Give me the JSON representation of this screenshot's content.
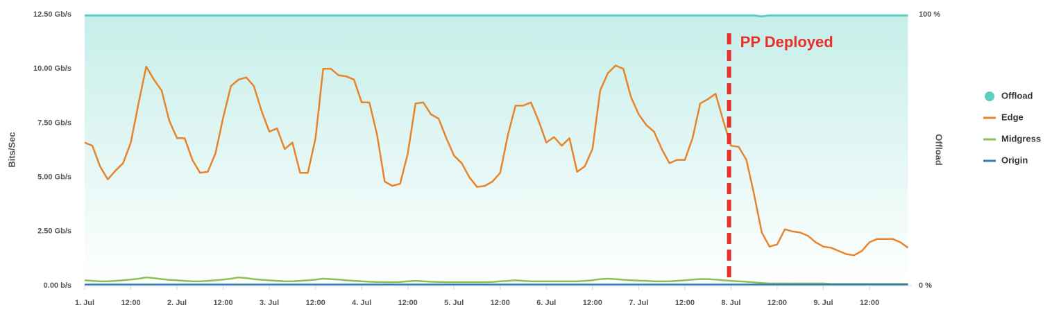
{
  "chart_data": {
    "type": "line",
    "y_label": "Bits/Sec",
    "y2_label": "Offload",
    "x": [
      0,
      2,
      4,
      6,
      8,
      10,
      12,
      14,
      16,
      18,
      20,
      22,
      24,
      26,
      28,
      30,
      32,
      34,
      36,
      38,
      40,
      42,
      44,
      46,
      48,
      50,
      52,
      54,
      56,
      58,
      60,
      62,
      64,
      66,
      68,
      70,
      72,
      74,
      76,
      78,
      80,
      82,
      84,
      86,
      88,
      90,
      92,
      94,
      96,
      98,
      100,
      102,
      104,
      106,
      108,
      110,
      112,
      114,
      116,
      118,
      120,
      122,
      124,
      126,
      128,
      130,
      132,
      134,
      136,
      138,
      140,
      142,
      144,
      146,
      148,
      150,
      152,
      154,
      156,
      158,
      160,
      162,
      164,
      166,
      168,
      170,
      172,
      174,
      176,
      178,
      180,
      182,
      184,
      186,
      188,
      190,
      192,
      194,
      196,
      198,
      200,
      202,
      204,
      206,
      208,
      210,
      212,
      214
    ],
    "series": [
      {
        "name": "Offload",
        "color": "#5ccfc0",
        "axis": "y2",
        "values": [
          99.7,
          99.7,
          99.7,
          99.7,
          99.7,
          99.7,
          99.7,
          99.7,
          99.7,
          99.7,
          99.7,
          99.7,
          99.7,
          99.7,
          99.7,
          99.7,
          99.7,
          99.7,
          99.7,
          99.7,
          99.7,
          99.7,
          99.7,
          99.7,
          99.7,
          99.7,
          99.7,
          99.7,
          99.7,
          99.7,
          99.7,
          99.7,
          99.7,
          99.7,
          99.7,
          99.7,
          99.7,
          99.7,
          99.7,
          99.7,
          99.7,
          99.7,
          99.7,
          99.7,
          99.7,
          99.7,
          99.7,
          99.7,
          99.7,
          99.7,
          99.7,
          99.7,
          99.7,
          99.7,
          99.7,
          99.7,
          99.7,
          99.7,
          99.7,
          99.7,
          99.7,
          99.7,
          99.7,
          99.7,
          99.7,
          99.7,
          99.7,
          99.7,
          99.7,
          99.7,
          99.7,
          99.7,
          99.7,
          99.7,
          99.7,
          99.7,
          99.7,
          99.7,
          99.7,
          99.7,
          99.7,
          99.7,
          99.7,
          99.7,
          99.7,
          99.7,
          99.7,
          99.7,
          99.3,
          99.7,
          99.7,
          99.7,
          99.7,
          99.7,
          99.7,
          99.7,
          99.7,
          99.7,
          99.7,
          99.7,
          99.7,
          99.7,
          99.7,
          99.7,
          99.7,
          99.7,
          99.7,
          99.7
        ]
      },
      {
        "name": "Edge",
        "color": "#e8832a",
        "values": [
          6.6,
          6.45,
          5.5,
          4.9,
          5.3,
          5.65,
          6.6,
          8.4,
          10.1,
          9.5,
          9.0,
          7.6,
          6.8,
          6.8,
          5.8,
          5.2,
          5.25,
          6.1,
          7.75,
          9.2,
          9.5,
          9.6,
          9.2,
          8.05,
          7.1,
          7.25,
          6.3,
          6.6,
          5.2,
          5.2,
          6.8,
          10.0,
          10.0,
          9.7,
          9.65,
          9.5,
          8.45,
          8.45,
          6.95,
          4.8,
          4.6,
          4.7,
          6.1,
          8.4,
          8.45,
          7.9,
          7.7,
          6.8,
          6.0,
          5.65,
          5.0,
          4.55,
          4.6,
          4.8,
          5.2,
          6.95,
          8.3,
          8.3,
          8.45,
          7.6,
          6.6,
          6.85,
          6.45,
          6.8,
          5.25,
          5.5,
          6.3,
          9.0,
          9.8,
          10.15,
          10.0,
          8.7,
          7.9,
          7.4,
          7.1,
          6.3,
          5.65,
          5.8,
          5.8,
          6.8,
          8.4,
          8.6,
          8.85,
          7.6,
          6.45,
          6.4,
          5.8,
          4.2,
          2.45,
          1.8,
          1.9,
          2.6,
          2.5,
          2.45,
          2.3,
          2.0,
          1.8,
          1.75,
          1.6,
          1.45,
          1.4,
          1.6,
          2.0,
          2.15,
          2.15,
          2.15,
          2.0,
          1.75
        ]
      },
      {
        "name": "Midgress",
        "color": "#8cc152",
        "values": [
          0.25,
          0.22,
          0.2,
          0.2,
          0.22,
          0.25,
          0.28,
          0.32,
          0.38,
          0.35,
          0.3,
          0.27,
          0.25,
          0.22,
          0.2,
          0.2,
          0.22,
          0.25,
          0.28,
          0.32,
          0.38,
          0.35,
          0.3,
          0.27,
          0.25,
          0.22,
          0.2,
          0.2,
          0.22,
          0.25,
          0.28,
          0.32,
          0.3,
          0.28,
          0.25,
          0.22,
          0.2,
          0.18,
          0.17,
          0.16,
          0.16,
          0.17,
          0.2,
          0.22,
          0.2,
          0.18,
          0.17,
          0.16,
          0.16,
          0.16,
          0.16,
          0.16,
          0.16,
          0.17,
          0.2,
          0.22,
          0.25,
          0.22,
          0.2,
          0.2,
          0.2,
          0.2,
          0.2,
          0.2,
          0.2,
          0.22,
          0.25,
          0.3,
          0.32,
          0.3,
          0.27,
          0.25,
          0.23,
          0.22,
          0.2,
          0.2,
          0.2,
          0.22,
          0.25,
          0.28,
          0.3,
          0.3,
          0.28,
          0.25,
          0.22,
          0.2,
          0.18,
          0.15,
          0.12,
          0.1,
          0.1,
          0.1,
          0.1,
          0.1,
          0.1,
          0.1,
          0.1,
          0.08,
          0.08,
          0.08,
          0.08,
          0.08,
          0.08,
          0.08,
          0.08,
          0.08,
          0.08,
          0.08
        ]
      },
      {
        "name": "Origin",
        "color": "#2f7fb5",
        "values": [
          0.05,
          0.05,
          0.05,
          0.05,
          0.05,
          0.05,
          0.05,
          0.05,
          0.05,
          0.05,
          0.05,
          0.05,
          0.05,
          0.05,
          0.05,
          0.05,
          0.05,
          0.05,
          0.05,
          0.05,
          0.05,
          0.05,
          0.05,
          0.05,
          0.05,
          0.05,
          0.05,
          0.05,
          0.05,
          0.05,
          0.05,
          0.05,
          0.05,
          0.05,
          0.05,
          0.05,
          0.05,
          0.05,
          0.05,
          0.05,
          0.05,
          0.05,
          0.05,
          0.05,
          0.05,
          0.05,
          0.05,
          0.05,
          0.05,
          0.05,
          0.05,
          0.05,
          0.05,
          0.05,
          0.05,
          0.05,
          0.05,
          0.05,
          0.05,
          0.05,
          0.05,
          0.05,
          0.05,
          0.05,
          0.05,
          0.05,
          0.05,
          0.05,
          0.05,
          0.05,
          0.05,
          0.05,
          0.05,
          0.05,
          0.05,
          0.05,
          0.05,
          0.05,
          0.05,
          0.05,
          0.05,
          0.05,
          0.05,
          0.05,
          0.05,
          0.05,
          0.05,
          0.05,
          0.05,
          0.05,
          0.05,
          0.05,
          0.05,
          0.05,
          0.05,
          0.05,
          0.05,
          0.05,
          0.05,
          0.05,
          0.05,
          0.05,
          0.05,
          0.05,
          0.05,
          0.05,
          0.05,
          0.05
        ]
      }
    ],
    "xlim": [
      0,
      215
    ],
    "xticks": [
      {
        "value": 0,
        "label": "1. Jul"
      },
      {
        "value": 12,
        "label": "12:00"
      },
      {
        "value": 24,
        "label": "2. Jul"
      },
      {
        "value": 36,
        "label": "12:00"
      },
      {
        "value": 48,
        "label": "3. Jul"
      },
      {
        "value": 60,
        "label": "12:00"
      },
      {
        "value": 72,
        "label": "4. Jul"
      },
      {
        "value": 84,
        "label": "12:00"
      },
      {
        "value": 96,
        "label": "5. Jul"
      },
      {
        "value": 108,
        "label": "12:00"
      },
      {
        "value": 120,
        "label": "6. Jul"
      },
      {
        "value": 132,
        "label": "12:00"
      },
      {
        "value": 144,
        "label": "7. Jul"
      },
      {
        "value": 156,
        "label": "12:00"
      },
      {
        "value": 168,
        "label": "8. Jul"
      },
      {
        "value": 180,
        "label": "12:00"
      },
      {
        "value": 192,
        "label": "9. Jul"
      },
      {
        "value": 204,
        "label": "12:00"
      }
    ],
    "ylim": [
      0,
      12.5
    ],
    "yticks": [
      {
        "value": 0,
        "label": "0.00 b/s"
      },
      {
        "value": 2.5,
        "label": "2.50 Gb/s"
      },
      {
        "value": 5,
        "label": "5.00 Gb/s"
      },
      {
        "value": 7.5,
        "label": "7.50 Gb/s"
      },
      {
        "value": 10,
        "label": "10.00 Gb/s"
      },
      {
        "value": 12.5,
        "label": "12.50 Gb/s"
      }
    ],
    "y2lim": [
      0,
      100
    ],
    "y2ticks": [
      {
        "value": 0,
        "label": "0 %"
      },
      {
        "value": 100,
        "label": "100 %"
      }
    ],
    "legend": "right",
    "annotation": {
      "text": "PP Deployed",
      "x": 167.5,
      "color": "#e8302a"
    }
  }
}
